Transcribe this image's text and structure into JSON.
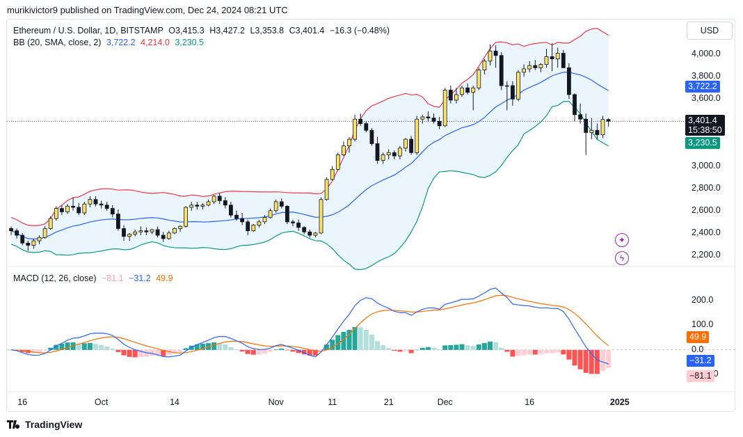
{
  "header": {
    "publish_line": "murikivictor9 published on TradingView.com, Dec 24, 2024 08:21 UTC"
  },
  "legend": {
    "symbol": "Ethereum / U.S. Dollar, 1D, BITSTAMP",
    "open": "O3,415.3",
    "high": "H3,427.2",
    "low": "L3,353.8",
    "close": "C3,401.4",
    "change": "−16.3 (−0.48%)",
    "bb_label": "BB (20, SMA, close, 2)",
    "bb_basis": "3,722.2",
    "bb_upper": "4,214.0",
    "bb_lower": "3,230.5",
    "macd_label": "MACD (12, 26, close)",
    "macd_hist": "−81.1",
    "macd_line": "−31.2",
    "macd_signal": "49.9"
  },
  "currency_button": "USD",
  "price_tags": {
    "basis": "3,722.2",
    "last_price": "3,401.4",
    "countdown": "15:38:50",
    "lower": "3,230.5"
  },
  "macd_tags": {
    "signal": "49.9",
    "macd": "−31.2",
    "hist": "−81.1"
  },
  "brand": "TradingView",
  "colors": {
    "up": "#f7e16b",
    "down": "#131722",
    "basis": "#2962ff",
    "upper": "#f23645",
    "lower": "#089981",
    "fill": "#e8f4fd",
    "macd": "#2962ff",
    "signal": "#ff6d00",
    "hist_pos_strong": "#26a69a",
    "hist_pos_weak": "#b2dfdb",
    "hist_neg_strong": "#ff5252",
    "hist_neg_weak": "#ffcdd2"
  },
  "chart_data": [
    {
      "type": "candlestick",
      "title": "Ethereum / U.S. Dollar, 1D, BITSTAMP",
      "ylim": [
        2100,
        4300
      ],
      "y_ticks": [
        "2,200.0",
        "2,400.0",
        "2,600.0",
        "2,800.0",
        "3,000.0",
        "3,200.0",
        "3,400.0",
        "3,600.0",
        "3,800.0",
        "4,000.0"
      ],
      "y_tick_values": [
        2200,
        2400,
        2600,
        2800,
        3000,
        3200,
        3400,
        3600,
        3800,
        4000
      ],
      "x_ticks": [
        {
          "label": "16",
          "bar": 2
        },
        {
          "label": "Oct",
          "bar": 16
        },
        {
          "label": "14",
          "bar": 29
        },
        {
          "label": "Nov",
          "bar": 47
        },
        {
          "label": "11",
          "bar": 57
        },
        {
          "label": "21",
          "bar": 67
        },
        {
          "label": "Dec",
          "bar": 77
        },
        {
          "label": "16",
          "bar": 92
        },
        {
          "label": "2025",
          "bar": 108
        }
      ],
      "candles": [
        [
          2440,
          2460,
          2380,
          2420
        ],
        [
          2420,
          2440,
          2350,
          2380
        ],
        [
          2380,
          2400,
          2290,
          2310
        ],
        [
          2310,
          2330,
          2240,
          2290
        ],
        [
          2290,
          2350,
          2260,
          2330
        ],
        [
          2330,
          2380,
          2300,
          2360
        ],
        [
          2360,
          2460,
          2350,
          2440
        ],
        [
          2440,
          2550,
          2430,
          2530
        ],
        [
          2530,
          2640,
          2510,
          2620
        ],
        [
          2620,
          2650,
          2560,
          2590
        ],
        [
          2590,
          2660,
          2570,
          2640
        ],
        [
          2640,
          2720,
          2600,
          2630
        ],
        [
          2630,
          2670,
          2560,
          2580
        ],
        [
          2580,
          2680,
          2560,
          2660
        ],
        [
          2660,
          2730,
          2630,
          2700
        ],
        [
          2700,
          2730,
          2640,
          2660
        ],
        [
          2660,
          2690,
          2620,
          2650
        ],
        [
          2650,
          2680,
          2600,
          2620
        ],
        [
          2620,
          2650,
          2540,
          2570
        ],
        [
          2570,
          2610,
          2420,
          2440
        ],
        [
          2440,
          2470,
          2330,
          2370
        ],
        [
          2370,
          2400,
          2330,
          2390
        ],
        [
          2390,
          2430,
          2370,
          2410
        ],
        [
          2410,
          2460,
          2380,
          2420
        ],
        [
          2420,
          2450,
          2380,
          2410
        ],
        [
          2410,
          2440,
          2390,
          2430
        ],
        [
          2430,
          2460,
          2360,
          2380
        ],
        [
          2380,
          2410,
          2320,
          2350
        ],
        [
          2350,
          2420,
          2340,
          2400
        ],
        [
          2400,
          2450,
          2390,
          2440
        ],
        [
          2440,
          2470,
          2410,
          2460
        ],
        [
          2460,
          2640,
          2450,
          2630
        ],
        [
          2630,
          2680,
          2600,
          2650
        ],
        [
          2650,
          2680,
          2610,
          2640
        ],
        [
          2640,
          2670,
          2610,
          2650
        ],
        [
          2650,
          2700,
          2640,
          2680
        ],
        [
          2680,
          2740,
          2660,
          2730
        ],
        [
          2730,
          2760,
          2660,
          2690
        ],
        [
          2690,
          2720,
          2620,
          2650
        ],
        [
          2650,
          2680,
          2540,
          2560
        ],
        [
          2560,
          2600,
          2510,
          2530
        ],
        [
          2530,
          2580,
          2470,
          2500
        ],
        [
          2500,
          2520,
          2380,
          2420
        ],
        [
          2420,
          2480,
          2410,
          2470
        ],
        [
          2470,
          2520,
          2450,
          2500
        ],
        [
          2500,
          2560,
          2480,
          2540
        ],
        [
          2540,
          2620,
          2530,
          2600
        ],
        [
          2600,
          2700,
          2580,
          2680
        ],
        [
          2680,
          2710,
          2620,
          2640
        ],
        [
          2640,
          2650,
          2480,
          2500
        ],
        [
          2500,
          2520,
          2460,
          2490
        ],
        [
          2490,
          2520,
          2420,
          2450
        ],
        [
          2450,
          2460,
          2390,
          2410
        ],
        [
          2410,
          2430,
          2360,
          2380
        ],
        [
          2380,
          2410,
          2360,
          2400
        ],
        [
          2400,
          2720,
          2390,
          2700
        ],
        [
          2700,
          2900,
          2690,
          2880
        ],
        [
          2880,
          3000,
          2870,
          2970
        ],
        [
          2970,
          3120,
          2960,
          3100
        ],
        [
          3100,
          3220,
          3090,
          3180
        ],
        [
          3180,
          3260,
          3120,
          3240
        ],
        [
          3240,
          3460,
          3220,
          3420
        ],
        [
          3420,
          3470,
          3360,
          3380
        ],
        [
          3380,
          3400,
          3300,
          3320
        ],
        [
          3320,
          3340,
          3180,
          3200
        ],
        [
          3200,
          3260,
          3020,
          3050
        ],
        [
          3050,
          3120,
          3020,
          3100
        ],
        [
          3100,
          3150,
          3060,
          3120
        ],
        [
          3120,
          3140,
          3060,
          3090
        ],
        [
          3090,
          3180,
          3060,
          3160
        ],
        [
          3160,
          3250,
          3130,
          3240
        ],
        [
          3240,
          3270,
          3100,
          3120
        ],
        [
          3120,
          3450,
          3100,
          3420
        ],
        [
          3420,
          3460,
          3380,
          3440
        ],
        [
          3440,
          3490,
          3400,
          3430
        ],
        [
          3430,
          3470,
          3380,
          3400
        ],
        [
          3400,
          3440,
          3330,
          3360
        ],
        [
          3360,
          3700,
          3350,
          3680
        ],
        [
          3680,
          3720,
          3560,
          3590
        ],
        [
          3590,
          3700,
          3560,
          3640
        ],
        [
          3640,
          3720,
          3620,
          3700
        ],
        [
          3700,
          3740,
          3640,
          3660
        ],
        [
          3660,
          3720,
          3500,
          3700
        ],
        [
          3700,
          3880,
          3680,
          3860
        ],
        [
          3860,
          3960,
          3820,
          3940
        ],
        [
          3940,
          4090,
          3900,
          4030
        ],
        [
          4030,
          4080,
          3880,
          3990
        ],
        [
          3990,
          4020,
          3680,
          3720
        ],
        [
          3720,
          3760,
          3500,
          3720
        ],
        [
          3720,
          3760,
          3540,
          3600
        ],
        [
          3600,
          3860,
          3580,
          3840
        ],
        [
          3840,
          3910,
          3800,
          3870
        ],
        [
          3870,
          3940,
          3840,
          3900
        ],
        [
          3900,
          3950,
          3860,
          3880
        ],
        [
          3880,
          3920,
          3840,
          3910
        ],
        [
          3910,
          4050,
          3880,
          3980
        ],
        [
          3980,
          4100,
          3850,
          3960
        ],
        [
          3960,
          4060,
          3880,
          4010
        ],
        [
          4010,
          4040,
          3880,
          3880
        ],
        [
          3880,
          3920,
          3600,
          3640
        ],
        [
          3640,
          3650,
          3400,
          3460
        ],
        [
          3460,
          3560,
          3380,
          3420
        ],
        [
          3420,
          3470,
          3100,
          3300
        ],
        [
          3300,
          3430,
          3240,
          3320
        ],
        [
          3320,
          3380,
          3240,
          3280
        ],
        [
          3280,
          3450,
          3250,
          3417
        ],
        [
          3417,
          3427,
          3354,
          3401
        ]
      ],
      "bollinger": {
        "upper_label": "4,214.0",
        "basis_label": "3,722.2",
        "lower_label": "3,230.5"
      }
    },
    {
      "type": "macd",
      "title": "MACD (12, 26, close)",
      "ylim": [
        -170,
        330
      ],
      "y_ticks": [
        "200.0",
        "100.0",
        "0.0",
        "−100.0"
      ],
      "y_tick_values": [
        200,
        100,
        0,
        -100
      ],
      "histogram_last": -81.1,
      "macd_last": -31.2,
      "signal_last": 49.9
    }
  ]
}
